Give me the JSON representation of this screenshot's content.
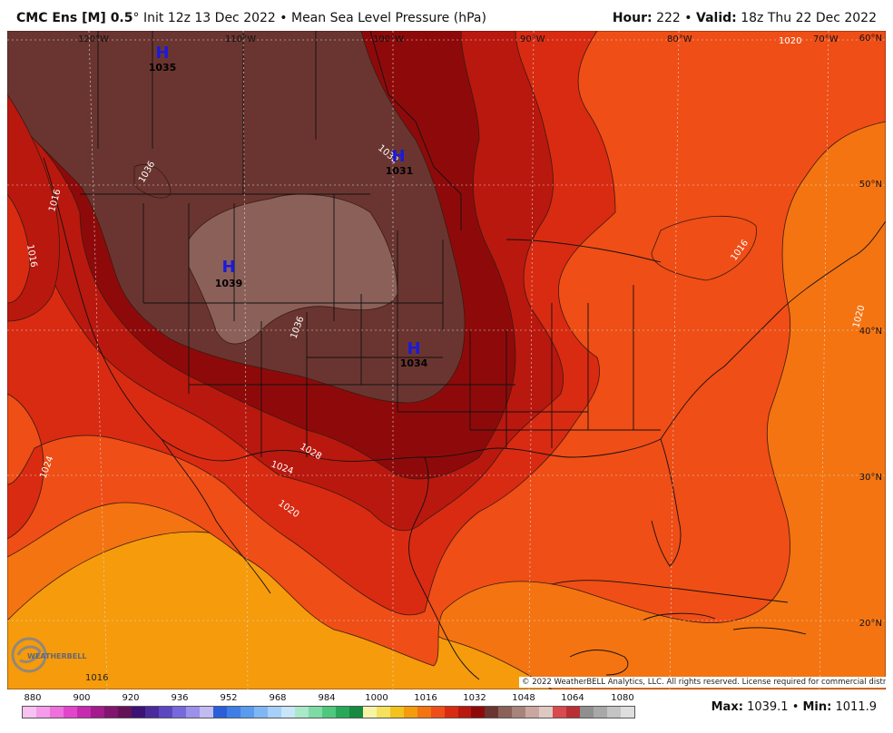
{
  "header": {
    "model": "CMC Ens [M] 0.5",
    "degree": "°",
    "init": " Init 12z 13 Dec 2022 • Mean Sea Level Pressure (hPa)",
    "hour_label": "Hour:",
    "hour_value": "222",
    "valid_label": "Valid:",
    "valid_value": "18z Thu 22 Dec 2022"
  },
  "map": {
    "lon_labels": [
      "120°W",
      "110°W",
      "100°W",
      "90°W",
      "80°W",
      "70°W"
    ],
    "lat_labels": [
      "60°N",
      "50°N",
      "40°N",
      "30°N",
      "20°N"
    ],
    "isobar_labels": [
      "1036",
      "1036",
      "1016",
      "1032",
      "1016",
      "1028",
      "1024",
      "1024",
      "1020",
      "1020",
      "1016",
      "1020",
      "1016"
    ],
    "pressure_centers": [
      {
        "symbol": "H",
        "value": "1035"
      },
      {
        "symbol": "H",
        "value": "1031"
      },
      {
        "symbol": "H",
        "value": "1039"
      },
      {
        "symbol": "H",
        "value": "1034"
      }
    ],
    "copyright": "© 2022 WeatherBELL Analytics, LLC. All rights reserved. License required for commercial distribution.",
    "logo_text": "WEATHERBELL"
  },
  "colorbar": {
    "labels": [
      "880",
      "900",
      "920",
      "936",
      "952",
      "968",
      "984",
      "1000",
      "1016",
      "1032",
      "1048",
      "1064",
      "1080"
    ],
    "colors": [
      "#f7c1f2",
      "#f49be9",
      "#ef6fdd",
      "#e444cc",
      "#c82aaf",
      "#a31b8d",
      "#82156f",
      "#651257",
      "#3d1275",
      "#4a2b9c",
      "#5c47c2",
      "#7868de",
      "#9b90ea",
      "#c1bbf2",
      "#2b5fd9",
      "#3e7ee6",
      "#5a9bef",
      "#7fb6f4",
      "#a6d0f7",
      "#c8e5f9",
      "#a9e8c9",
      "#7ddca6",
      "#4ec87e",
      "#2aa85a",
      "#178a3f",
      "#f7f4a6",
      "#f5e15e",
      "#f3c21d",
      "#f59b0c",
      "#f47411",
      "#ef4e16",
      "#d92b12",
      "#b9180e",
      "#8e0a0a",
      "#6a3530",
      "#8a6059",
      "#a8837b",
      "#c9a79f",
      "#e0c8c2",
      "#d84a4e",
      "#b83034",
      "#8f8f8f",
      "#a8a8a8",
      "#c4c4c4",
      "#dedede"
    ],
    "max_label": "Max:",
    "max_value": "1039.1",
    "sep": " • ",
    "min_label": "Min:",
    "min_value": "1011.9"
  },
  "colors": {
    "p1039": "#8a6059",
    "p1036": "#6a3530",
    "p1032": "#8e0a0a",
    "p1028": "#b9180e",
    "p1024": "#d92b12",
    "p1020": "#ef4e16",
    "p1016": "#f47411",
    "p1012": "#f59b0c",
    "high_marker": "#1a1adb"
  }
}
